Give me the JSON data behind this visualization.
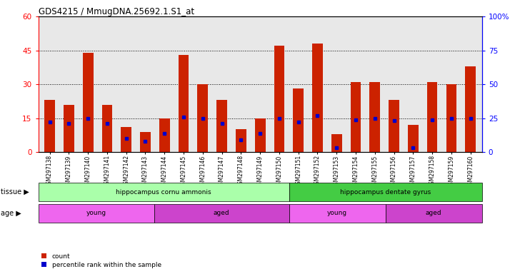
{
  "title": "GDS4215 / MmugDNA.25692.1.S1_at",
  "samples": [
    "GSM297138",
    "GSM297139",
    "GSM297140",
    "GSM297141",
    "GSM297142",
    "GSM297143",
    "GSM297144",
    "GSM297145",
    "GSM297146",
    "GSM297147",
    "GSM297148",
    "GSM297149",
    "GSM297150",
    "GSM297151",
    "GSM297152",
    "GSM297153",
    "GSM297154",
    "GSM297155",
    "GSM297156",
    "GSM297157",
    "GSM297158",
    "GSM297159",
    "GSM297160"
  ],
  "counts": [
    23,
    21,
    44,
    21,
    11,
    9,
    15,
    43,
    30,
    23,
    10,
    15,
    47,
    28,
    48,
    8,
    31,
    31,
    23,
    12,
    31,
    30,
    38
  ],
  "percentiles": [
    22,
    21,
    25,
    21,
    10,
    8,
    14,
    26,
    25,
    21,
    9,
    14,
    25,
    22,
    27,
    3,
    24,
    25,
    23,
    3,
    24,
    25,
    25
  ],
  "bar_color": "#cc2200",
  "marker_color": "#0000cc",
  "ylim_left": [
    0,
    60
  ],
  "ylim_right": [
    0,
    100
  ],
  "yticks_left": [
    0,
    15,
    30,
    45,
    60
  ],
  "yticks_right": [
    0,
    25,
    50,
    75,
    100
  ],
  "grid_values": [
    15,
    30,
    45
  ],
  "tissue_groups": [
    {
      "label": "hippocampus cornu ammonis",
      "start": 0,
      "end": 13,
      "color": "#aaffaa"
    },
    {
      "label": "hippocampus dentate gyrus",
      "start": 13,
      "end": 23,
      "color": "#44cc44"
    }
  ],
  "age_groups": [
    {
      "label": "young",
      "start": 0,
      "end": 6,
      "color": "#ee66ee"
    },
    {
      "label": "aged",
      "start": 6,
      "end": 13,
      "color": "#cc44cc"
    },
    {
      "label": "young",
      "start": 13,
      "end": 18,
      "color": "#ee66ee"
    },
    {
      "label": "aged",
      "start": 18,
      "end": 23,
      "color": "#cc44cc"
    }
  ],
  "tissue_label": "tissue ▶",
  "age_label": "age ▶",
  "legend_count": "count",
  "legend_pct": "percentile rank within the sample",
  "bg_color": "#d3d3d3",
  "plot_bg": "#e8e8e8"
}
